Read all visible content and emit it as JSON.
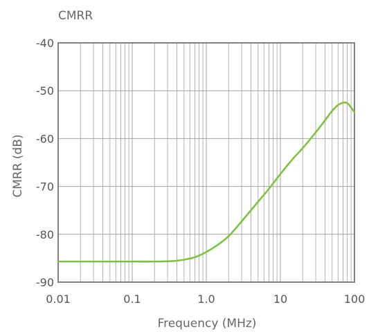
{
  "chart_data": {
    "type": "line",
    "title": "CMRR",
    "xlabel": "Frequency (MHz)",
    "ylabel": "CMRR (dB)",
    "xscale": "log",
    "xlim": [
      0.01,
      100
    ],
    "ylim": [
      -90,
      -40
    ],
    "x_tick_labels": [
      "0.01",
      "0.1",
      "1.0",
      "10",
      "100"
    ],
    "y_tick_labels": [
      "-40",
      "-50",
      "-60",
      "-70",
      "-80",
      "-90"
    ],
    "grid": true,
    "series_color": "#7dc242",
    "grid_color": "#a0a0a0",
    "frame_color": "#808080",
    "series": [
      {
        "x": [
          0.01,
          0.05,
          0.1,
          0.2,
          0.35,
          0.5,
          0.7,
          1.0,
          1.4,
          2.0,
          3.0,
          5.0,
          7.0,
          10,
          15,
          20,
          30,
          40,
          50,
          60,
          70,
          80,
          90,
          100
        ],
        "y": [
          -85.7,
          -85.7,
          -85.7,
          -85.7,
          -85.6,
          -85.3,
          -84.8,
          -83.7,
          -82.3,
          -80.4,
          -77.3,
          -73.2,
          -70.5,
          -67.4,
          -64.1,
          -62.0,
          -58.7,
          -56.2,
          -54.2,
          -53.0,
          -52.5,
          -52.6,
          -53.5,
          -54.5
        ]
      }
    ]
  }
}
